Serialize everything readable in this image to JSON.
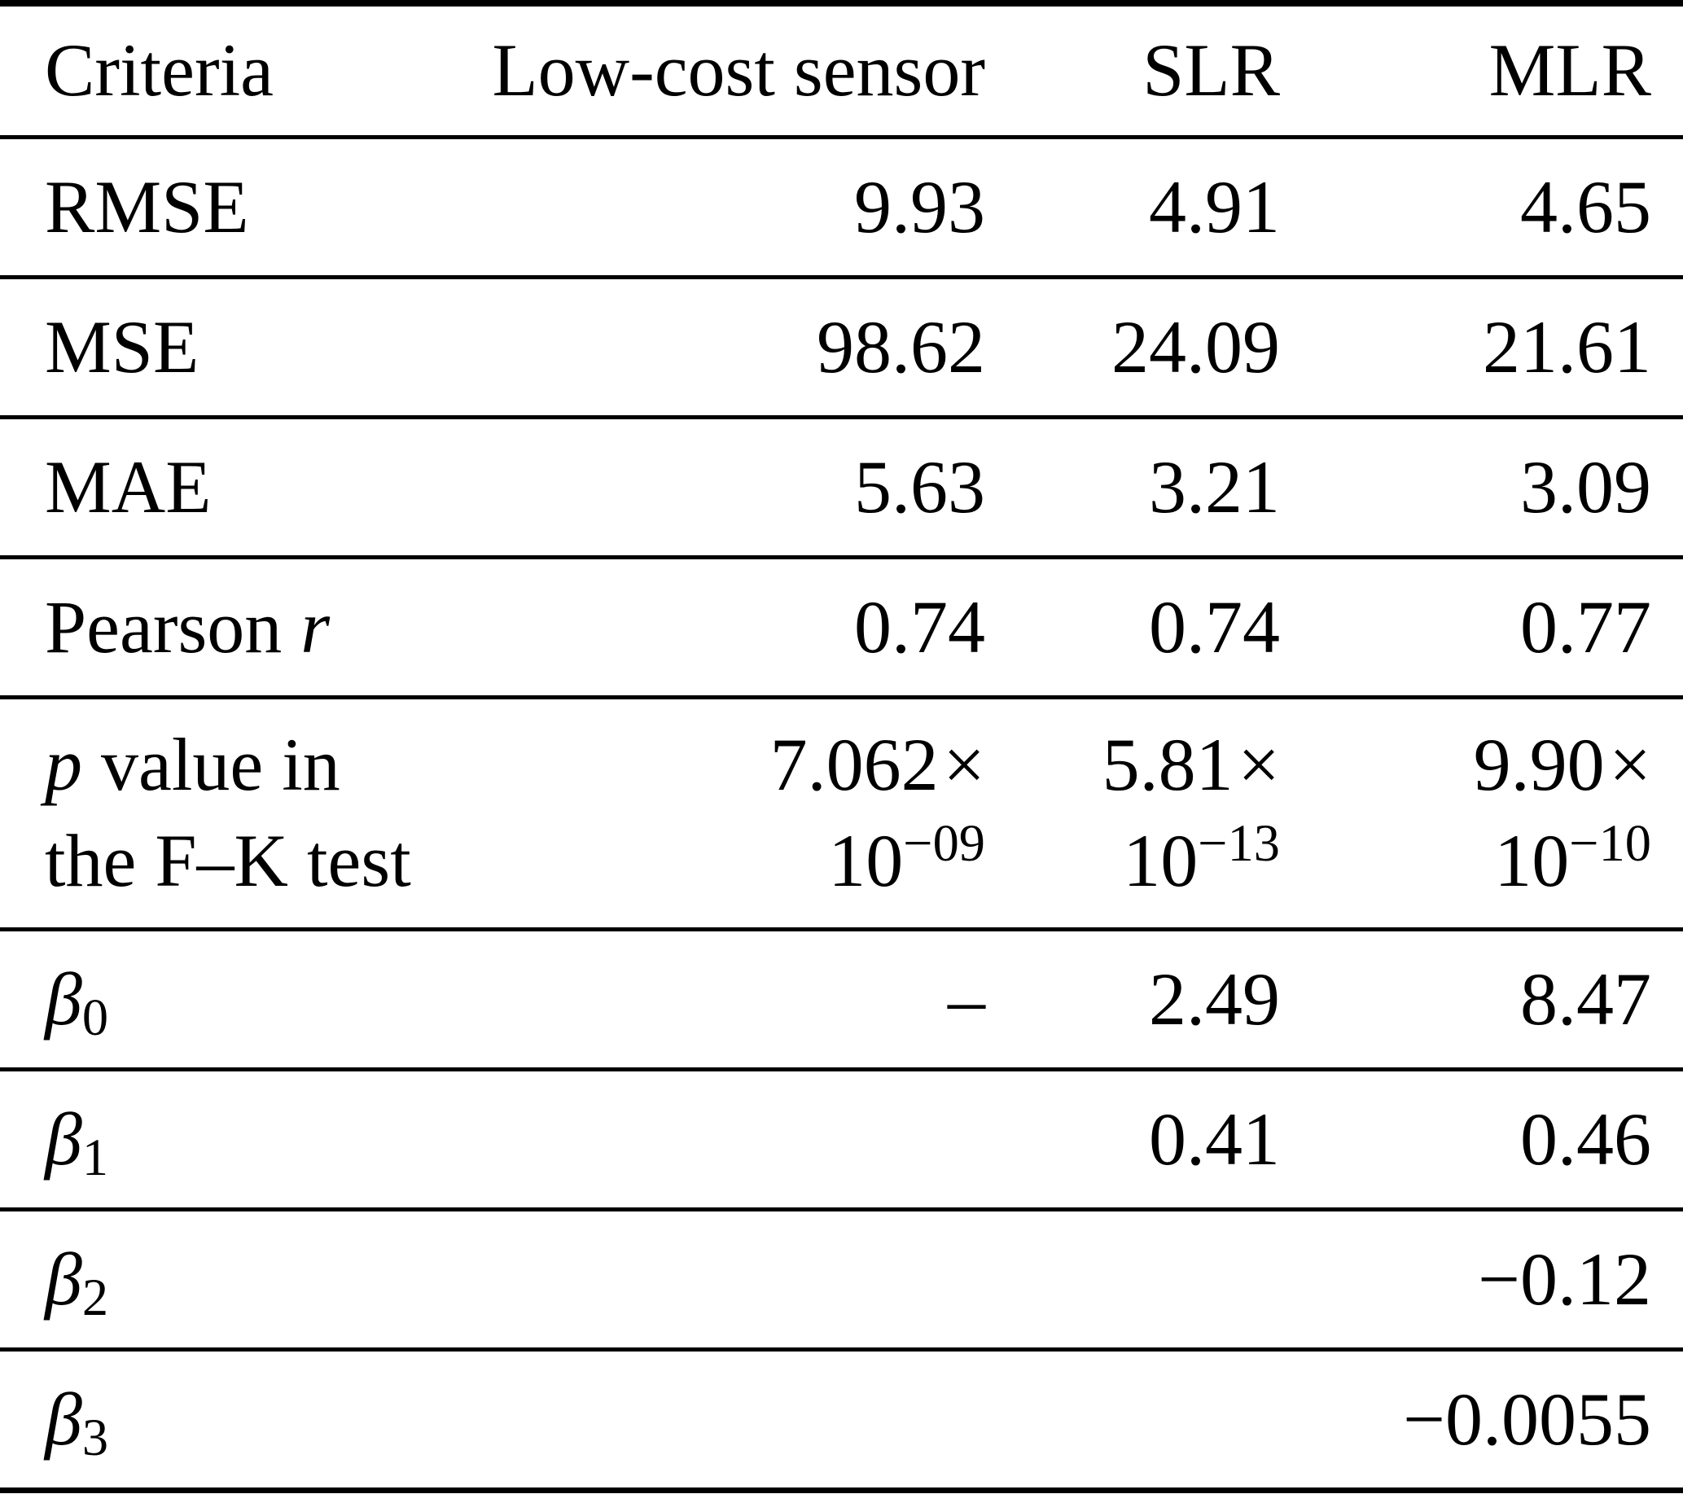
{
  "table": {
    "columns": {
      "criteria": "Criteria",
      "low_cost_sensor": "Low-cost sensor",
      "slr": "SLR",
      "mlr": "MLR"
    },
    "rows": {
      "rmse": {
        "label": "RMSE",
        "values": [
          "9.93",
          "4.91",
          "4.65"
        ]
      },
      "mse": {
        "label": "MSE",
        "values": [
          "98.62",
          "24.09",
          "21.61"
        ]
      },
      "mae": {
        "label": "MAE",
        "values": [
          "5.63",
          "3.21",
          "3.09"
        ]
      },
      "pearson": {
        "label_prefix": "Pearson ",
        "label_italic": "r",
        "values": [
          "0.74",
          "0.74",
          "0.77"
        ]
      },
      "pvalue": {
        "label_italic": "p",
        "label_rest": " value in",
        "label_line2": "the F–K test",
        "values": [
          {
            "mantissa": "7.062",
            "times": "×",
            "base": "10",
            "exponent": "−09"
          },
          {
            "mantissa": "5.81",
            "times": "×",
            "base": "10",
            "exponent": "−13"
          },
          {
            "mantissa": "9.90",
            "times": "×",
            "base": "10",
            "exponent": "−10"
          }
        ]
      },
      "beta0": {
        "symbol": "β",
        "sub": "0",
        "values": [
          "–",
          "2.49",
          "8.47"
        ]
      },
      "beta1": {
        "symbol": "β",
        "sub": "1",
        "values": [
          "",
          "0.41",
          "0.46"
        ]
      },
      "beta2": {
        "symbol": "β",
        "sub": "2",
        "values": [
          "",
          "",
          "−0.12"
        ]
      },
      "beta3": {
        "symbol": "β",
        "sub": "3",
        "values": [
          "",
          "",
          "−0.0055"
        ]
      }
    }
  }
}
